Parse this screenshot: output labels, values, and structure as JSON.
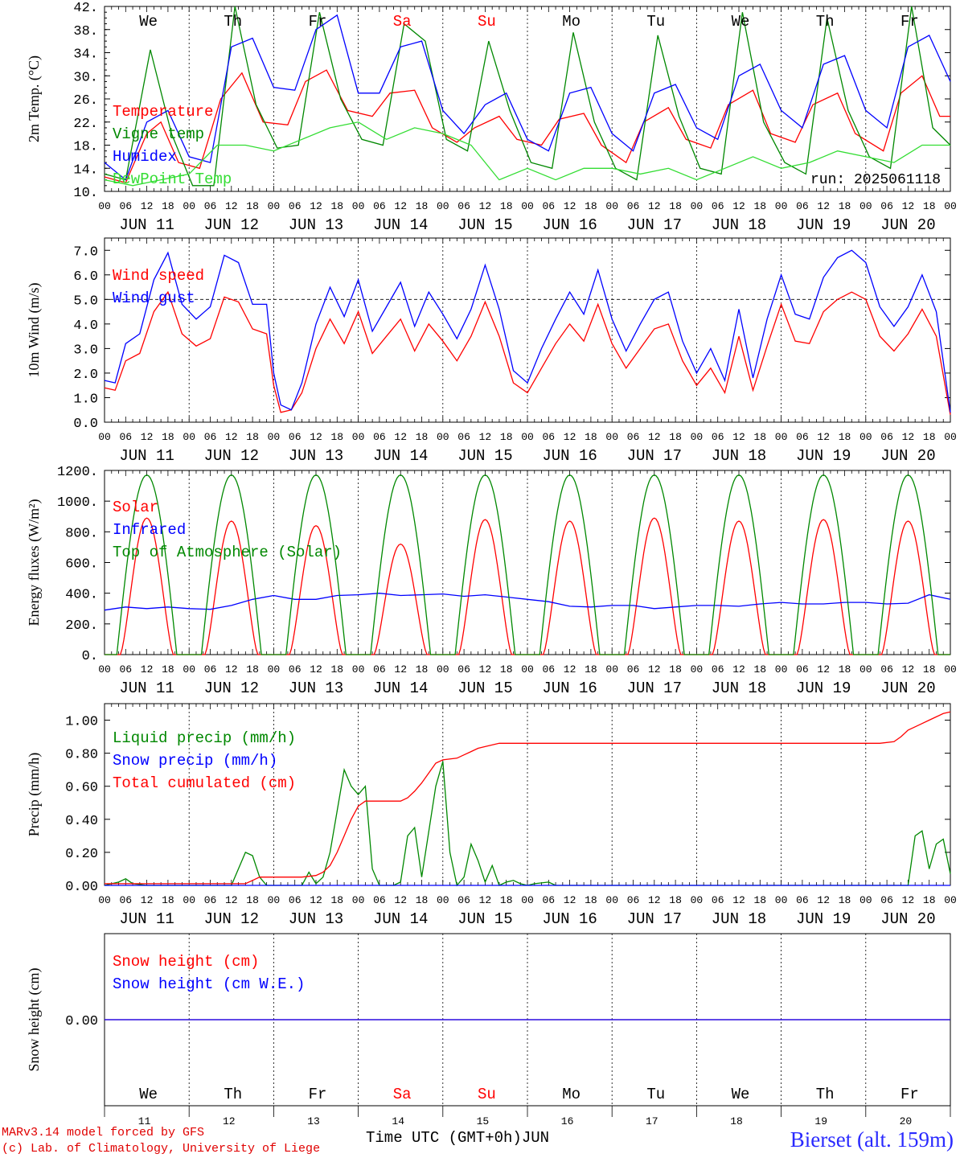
{
  "footer": {
    "model": "MARv3.14 model forced by GFS",
    "lab": "(c) Lab. of Climatology, University of Liege",
    "station": "Bierset (alt. 159m)",
    "time_title": "Time UTC (GMT+0h)JUN"
  },
  "colors": {
    "red": "#ff0000",
    "green": "#008800",
    "blue": "#0000ff",
    "lightgreen": "#33dd33",
    "black": "#000000"
  },
  "chart_data": [
    {
      "id": "temperature",
      "type": "line",
      "ylabel": "2m Temp. (°C)",
      "ylim": [
        10,
        42
      ],
      "yticks": [
        "10.",
        "14.",
        "18.",
        "22.",
        "26.",
        "30.",
        "34.",
        "38.",
        "42."
      ],
      "yticks_values": [
        10,
        14,
        18,
        22,
        26,
        30,
        34,
        38,
        42
      ],
      "weekdays": [
        "We",
        "Th",
        "Fr",
        "Sa",
        "Su",
        "Mo",
        "Tu",
        "We",
        "Th",
        "Fr"
      ],
      "weekday_colors": [
        "#000000",
        "#000000",
        "#000000",
        "#ff0000",
        "#ff0000",
        "#000000",
        "#000000",
        "#000000",
        "#000000",
        "#000000"
      ],
      "run_label": "run: 2025061118",
      "x_range_hours": [
        0,
        240
      ],
      "series": [
        {
          "name": "Temperature",
          "color": "#ff0000",
          "x": [
            0,
            6,
            12,
            16,
            21,
            27,
            33,
            39,
            45,
            52,
            57,
            63,
            69,
            76,
            81,
            88,
            93,
            100,
            105,
            112,
            117,
            124,
            129,
            136,
            141,
            148,
            153,
            160,
            165,
            172,
            177,
            184,
            189,
            196,
            201,
            208,
            213,
            221,
            226,
            232,
            237,
            240
          ],
          "y": [
            12.5,
            11.5,
            20,
            22,
            15,
            14,
            26,
            30.5,
            22,
            21.5,
            29,
            31,
            24,
            23,
            27,
            27.5,
            21,
            18.5,
            21,
            23,
            19,
            18,
            22.5,
            23.5,
            18,
            15,
            22,
            24.5,
            19,
            17.5,
            25,
            27.5,
            20,
            18.5,
            25,
            27,
            20,
            17,
            27,
            30,
            23,
            23
          ]
        },
        {
          "name": "Vigne temp",
          "color": "#008800",
          "x": [
            0,
            6,
            13,
            19,
            25,
            31,
            37,
            43,
            49,
            55,
            61,
            67,
            73,
            79,
            85,
            91,
            97,
            103,
            109,
            115,
            121,
            127,
            133,
            139,
            145,
            151,
            157,
            163,
            169,
            175,
            181,
            187,
            193,
            199,
            205,
            211,
            217,
            223,
            229,
            235,
            240
          ],
          "y": [
            13,
            12,
            34.5,
            20,
            11,
            11,
            42,
            25,
            17.5,
            18,
            41,
            26,
            19,
            18,
            39,
            36,
            19,
            17,
            36,
            24,
            15,
            14,
            37.5,
            22,
            14,
            12,
            37,
            23,
            14,
            13,
            41,
            22,
            15,
            13,
            40,
            24,
            16,
            14,
            42,
            21,
            18
          ]
        },
        {
          "name": "Humidex",
          "color": "#0000ff",
          "x": [
            0,
            6,
            12,
            18,
            24,
            30,
            36,
            42,
            48,
            54,
            60,
            66,
            72,
            78,
            84,
            90,
            96,
            102,
            108,
            114,
            120,
            126,
            132,
            138,
            144,
            150,
            156,
            162,
            168,
            174,
            180,
            186,
            192,
            198,
            204,
            210,
            216,
            222,
            228,
            234,
            240
          ],
          "y": [
            15,
            12,
            22,
            24,
            16,
            15,
            35,
            36.5,
            28,
            27.5,
            38,
            40.5,
            27,
            27,
            35,
            36,
            24,
            20,
            25,
            27,
            19,
            17,
            27,
            28,
            20,
            17,
            27,
            28.5,
            21,
            19,
            30,
            32,
            24,
            21,
            32,
            33.5,
            24,
            21,
            35,
            37,
            29
          ]
        },
        {
          "name": "DewPoint Temp",
          "color": "#33dd33",
          "x": [
            0,
            8,
            16,
            24,
            32,
            40,
            48,
            56,
            64,
            72,
            80,
            88,
            96,
            104,
            112,
            120,
            128,
            136,
            144,
            152,
            160,
            168,
            176,
            184,
            192,
            200,
            208,
            216,
            224,
            232,
            240
          ],
          "y": [
            12,
            11,
            12,
            13,
            18,
            18,
            17,
            19,
            21,
            22,
            19,
            21,
            20,
            18,
            12,
            14,
            12,
            14,
            14,
            13,
            14,
            12,
            14,
            16,
            14,
            15,
            17,
            16,
            15,
            18,
            18
          ]
        }
      ]
    },
    {
      "id": "wind",
      "type": "line",
      "ylabel": "10m Wind (m/s)",
      "ylim": [
        0,
        7.5
      ],
      "yticks": [
        "0.0",
        "1.0",
        "2.0",
        "3.0",
        "4.0",
        "5.0",
        "6.0",
        "7.0"
      ],
      "yticks_values": [
        0,
        1,
        2,
        3,
        4,
        5,
        6,
        7
      ],
      "ref_line": 5.0,
      "x_range_hours": [
        0,
        240
      ],
      "series": [
        {
          "name": "Wind speed",
          "color": "#ff0000",
          "x": [
            0,
            3,
            6,
            10,
            14,
            18,
            22,
            26,
            30,
            34,
            38,
            42,
            46,
            48,
            50,
            53,
            56,
            60,
            64,
            68,
            72,
            76,
            80,
            84,
            88,
            92,
            96,
            100,
            104,
            108,
            112,
            116,
            120,
            124,
            128,
            132,
            136,
            140,
            144,
            148,
            152,
            156,
            160,
            164,
            168,
            172,
            176,
            180,
            184,
            188,
            192,
            196,
            200,
            204,
            208,
            212,
            216,
            220,
            224,
            228,
            232,
            236,
            240
          ],
          "y": [
            1.4,
            1.3,
            2.5,
            2.8,
            4.5,
            5.3,
            3.6,
            3.1,
            3.4,
            5.1,
            4.9,
            3.8,
            3.6,
            1.5,
            0.4,
            0.5,
            1.2,
            3.0,
            4.2,
            3.2,
            4.5,
            2.8,
            3.5,
            4.2,
            2.9,
            4.0,
            3.3,
            2.5,
            3.5,
            4.9,
            3.5,
            1.6,
            1.2,
            2.2,
            3.2,
            4.0,
            3.3,
            4.8,
            3.2,
            2.2,
            3.0,
            3.8,
            4.0,
            2.5,
            1.5,
            2.2,
            1.2,
            3.5,
            1.3,
            3.1,
            4.8,
            3.3,
            3.2,
            4.5,
            5.0,
            5.3,
            5.0,
            3.5,
            2.9,
            3.6,
            4.6,
            3.5,
            0.3
          ]
        },
        {
          "name": "Wind gust",
          "color": "#0000ff",
          "x": [
            0,
            3,
            6,
            10,
            14,
            18,
            22,
            26,
            30,
            34,
            38,
            42,
            46,
            48,
            50,
            53,
            56,
            60,
            64,
            68,
            72,
            76,
            80,
            84,
            88,
            92,
            96,
            100,
            104,
            108,
            112,
            116,
            120,
            124,
            128,
            132,
            136,
            140,
            144,
            148,
            152,
            156,
            160,
            164,
            168,
            172,
            176,
            180,
            184,
            188,
            192,
            196,
            200,
            204,
            208,
            212,
            216,
            220,
            224,
            228,
            232,
            236,
            240
          ],
          "y": [
            1.7,
            1.6,
            3.2,
            3.6,
            5.8,
            6.9,
            4.8,
            4.2,
            4.7,
            6.8,
            6.5,
            4.8,
            4.8,
            2.0,
            0.7,
            0.5,
            1.6,
            4.0,
            5.5,
            4.3,
            5.8,
            3.7,
            4.7,
            5.7,
            3.9,
            5.3,
            4.4,
            3.4,
            4.6,
            6.4,
            4.6,
            2.1,
            1.6,
            3.0,
            4.2,
            5.3,
            4.4,
            6.2,
            4.2,
            2.9,
            4.0,
            5.0,
            5.3,
            3.3,
            2.0,
            3.0,
            1.7,
            4.6,
            1.8,
            4.2,
            6.0,
            4.4,
            4.2,
            5.9,
            6.7,
            7.0,
            6.5,
            4.7,
            3.9,
            4.7,
            6.0,
            4.5,
            0.4
          ]
        }
      ]
    },
    {
      "id": "energy",
      "type": "line",
      "ylabel": "Energy fluxes (W/m²)",
      "ylim": [
        0,
        1200
      ],
      "yticks": [
        "0.",
        "200.",
        "400.",
        "600.",
        "800.",
        "1000.",
        "1200."
      ],
      "yticks_values": [
        0,
        200,
        400,
        600,
        800,
        1000,
        1200
      ],
      "x_range_hours": [
        0,
        240
      ],
      "solar_peaks": [
        890,
        870,
        840,
        720,
        880,
        870,
        890,
        870,
        880,
        870
      ],
      "toa_peak": 1170,
      "series": [
        {
          "name": "Solar",
          "color": "#ff0000"
        },
        {
          "name": "Infrared",
          "color": "#0000ff",
          "x": [
            0,
            6,
            12,
            18,
            24,
            30,
            36,
            42,
            48,
            54,
            60,
            66,
            72,
            78,
            84,
            90,
            96,
            102,
            108,
            114,
            120,
            126,
            132,
            138,
            144,
            150,
            156,
            162,
            168,
            174,
            180,
            186,
            192,
            198,
            204,
            210,
            216,
            222,
            228,
            234,
            240
          ],
          "y": [
            290,
            310,
            300,
            310,
            300,
            295,
            320,
            360,
            385,
            360,
            360,
            385,
            390,
            400,
            385,
            390,
            395,
            380,
            390,
            375,
            360,
            345,
            315,
            310,
            320,
            320,
            300,
            310,
            320,
            320,
            315,
            330,
            340,
            330,
            330,
            340,
            340,
            330,
            335,
            390,
            360
          ]
        },
        {
          "name": "Top of Atmosphere (Solar)",
          "color": "#008800"
        }
      ]
    },
    {
      "id": "precip",
      "type": "line",
      "ylabel": "Precip (mm/h)",
      "ylim": [
        0,
        1.1
      ],
      "yticks": [
        "0.00",
        "0.20",
        "0.40",
        "0.60",
        "0.80",
        "1.00"
      ],
      "yticks_values": [
        0,
        0.2,
        0.4,
        0.6,
        0.8,
        1.0
      ],
      "x_range_hours": [
        0,
        240
      ],
      "series": [
        {
          "name": "Liquid precip (mm/h)",
          "color": "#008800",
          "x": [
            0,
            4,
            6,
            8,
            12,
            36,
            40,
            42,
            44,
            46,
            48,
            56,
            58,
            60,
            62,
            64,
            66,
            68,
            70,
            72,
            74,
            76,
            78,
            80,
            82,
            84,
            86,
            88,
            90,
            94,
            96,
            98,
            100,
            102,
            104,
            106,
            108,
            110,
            112,
            114,
            116,
            118,
            120,
            122,
            126,
            128,
            228,
            230,
            232,
            234,
            236,
            238,
            240
          ],
          "y": [
            0,
            0.02,
            0.04,
            0.01,
            0,
            0,
            0.2,
            0.18,
            0.05,
            0,
            0,
            0,
            0.08,
            0.01,
            0.05,
            0.2,
            0.45,
            0.7,
            0.6,
            0.55,
            0.6,
            0.1,
            0,
            0,
            0,
            0.02,
            0.3,
            0.35,
            0.05,
            0.6,
            0.75,
            0.2,
            0,
            0.05,
            0.25,
            0.15,
            0.02,
            0.12,
            0,
            0.02,
            0.03,
            0.01,
            0,
            0.01,
            0.02,
            0,
            0,
            0.3,
            0.33,
            0.1,
            0.25,
            0.28,
            0.07
          ]
        },
        {
          "name": "Snow precip (mm/h)",
          "color": "#0000ff",
          "x": [
            0,
            240
          ],
          "y": [
            0,
            0
          ]
        },
        {
          "name": "Total cumulated (cm)",
          "color": "#ff0000",
          "x": [
            0,
            40,
            42,
            44,
            56,
            60,
            62,
            64,
            66,
            68,
            70,
            72,
            74,
            84,
            86,
            88,
            90,
            92,
            94,
            96,
            100,
            102,
            104,
            106,
            108,
            112,
            116,
            220,
            224,
            226,
            228,
            230,
            232,
            234,
            236,
            238,
            240
          ],
          "y": [
            0.01,
            0.01,
            0.03,
            0.05,
            0.05,
            0.06,
            0.08,
            0.12,
            0.2,
            0.3,
            0.4,
            0.48,
            0.51,
            0.51,
            0.53,
            0.57,
            0.62,
            0.68,
            0.74,
            0.76,
            0.77,
            0.79,
            0.81,
            0.83,
            0.84,
            0.86,
            0.86,
            0.86,
            0.87,
            0.9,
            0.94,
            0.96,
            0.98,
            1.0,
            1.02,
            1.04,
            1.05
          ]
        }
      ]
    },
    {
      "id": "snow",
      "type": "line",
      "ylabel": "Snow height (cm)",
      "ylim": [
        -1,
        1
      ],
      "yticks": [
        "0.00"
      ],
      "yticks_values": [
        0
      ],
      "x_range_hours": [
        0,
        240
      ],
      "weekdays": [
        "We",
        "Th",
        "Fr",
        "Sa",
        "Su",
        "Mo",
        "Tu",
        "We",
        "Th",
        "Fr"
      ],
      "weekday_colors": [
        "#000000",
        "#000000",
        "#000000",
        "#ff0000",
        "#ff0000",
        "#000000",
        "#000000",
        "#000000",
        "#000000",
        "#000000"
      ],
      "day_numbers": [
        "11",
        "12",
        "13",
        "14",
        "15",
        "16",
        "17",
        "18",
        "19",
        "20"
      ],
      "series": [
        {
          "name": "Snow height (cm)",
          "color": "#ff0000",
          "x": [
            0,
            240
          ],
          "y": [
            0,
            0
          ]
        },
        {
          "name": "Snow height (cm W.E.)",
          "color": "#0000ff",
          "x": [
            0,
            240
          ],
          "y": [
            0,
            0
          ]
        }
      ]
    }
  ],
  "x_axis": {
    "hour_labels": [
      "00",
      "06",
      "12",
      "18"
    ],
    "end_label": "00",
    "date_labels": [
      "JUN 11",
      "JUN 12",
      "JUN 13",
      "JUN 14",
      "JUN 15",
      "JUN 16",
      "JUN 17",
      "JUN 18",
      "JUN 19",
      "JUN 20"
    ]
  }
}
